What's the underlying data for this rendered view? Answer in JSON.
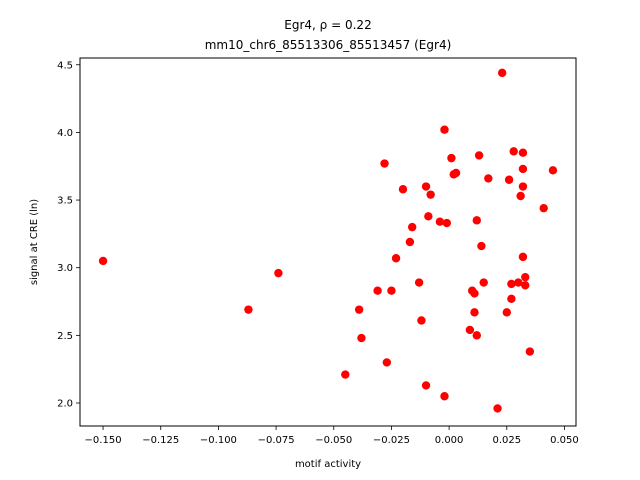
{
  "chart_data": {
    "type": "scatter",
    "title_line1": "Egr4, ρ = 0.22",
    "title_line2": "mm10_chr6_85513306_85513457 (Egr4)",
    "xlabel": "motif activity",
    "ylabel": "signal at CRE (ln)",
    "xlim": [
      -0.16,
      0.055
    ],
    "ylim": [
      1.83,
      4.55
    ],
    "xticks": [
      -0.15,
      -0.125,
      -0.1,
      -0.075,
      -0.05,
      -0.025,
      0.0,
      0.025,
      0.05
    ],
    "xtick_labels": [
      "−0.150",
      "−0.125",
      "−0.100",
      "−0.075",
      "−0.050",
      "−0.025",
      "0.000",
      "0.025",
      "0.050"
    ],
    "yticks": [
      2.0,
      2.5,
      3.0,
      3.5,
      4.0,
      4.5
    ],
    "ytick_labels": [
      "2.0",
      "2.5",
      "3.0",
      "3.5",
      "4.0",
      "4.5"
    ],
    "marker_color": "#ff0000",
    "grid": false,
    "points": [
      {
        "x": -0.15,
        "y": 3.05
      },
      {
        "x": -0.087,
        "y": 2.69
      },
      {
        "x": -0.074,
        "y": 2.96
      },
      {
        "x": -0.045,
        "y": 2.21
      },
      {
        "x": -0.039,
        "y": 2.69
      },
      {
        "x": -0.038,
        "y": 2.48
      },
      {
        "x": -0.031,
        "y": 2.83
      },
      {
        "x": -0.028,
        "y": 3.77
      },
      {
        "x": -0.027,
        "y": 2.3
      },
      {
        "x": -0.025,
        "y": 2.83
      },
      {
        "x": -0.023,
        "y": 3.07
      },
      {
        "x": -0.02,
        "y": 3.58
      },
      {
        "x": -0.017,
        "y": 3.19
      },
      {
        "x": -0.016,
        "y": 3.3
      },
      {
        "x": -0.013,
        "y": 2.89
      },
      {
        "x": -0.012,
        "y": 2.61
      },
      {
        "x": -0.01,
        "y": 3.6
      },
      {
        "x": -0.009,
        "y": 3.38
      },
      {
        "x": -0.01,
        "y": 2.13
      },
      {
        "x": -0.008,
        "y": 3.54
      },
      {
        "x": -0.004,
        "y": 3.34
      },
      {
        "x": -0.002,
        "y": 4.02
      },
      {
        "x": -0.002,
        "y": 2.05
      },
      {
        "x": -0.001,
        "y": 3.33
      },
      {
        "x": 0.001,
        "y": 3.81
      },
      {
        "x": 0.002,
        "y": 3.69
      },
      {
        "x": 0.003,
        "y": 3.7
      },
      {
        "x": 0.009,
        "y": 2.54
      },
      {
        "x": 0.01,
        "y": 2.83
      },
      {
        "x": 0.011,
        "y": 2.81
      },
      {
        "x": 0.011,
        "y": 2.67
      },
      {
        "x": 0.012,
        "y": 3.35
      },
      {
        "x": 0.012,
        "y": 2.5
      },
      {
        "x": 0.013,
        "y": 3.83
      },
      {
        "x": 0.014,
        "y": 3.16
      },
      {
        "x": 0.015,
        "y": 2.89
      },
      {
        "x": 0.017,
        "y": 3.66
      },
      {
        "x": 0.021,
        "y": 1.96
      },
      {
        "x": 0.023,
        "y": 4.44
      },
      {
        "x": 0.025,
        "y": 2.67
      },
      {
        "x": 0.026,
        "y": 3.65
      },
      {
        "x": 0.027,
        "y": 2.77
      },
      {
        "x": 0.027,
        "y": 2.88
      },
      {
        "x": 0.028,
        "y": 3.86
      },
      {
        "x": 0.03,
        "y": 2.89
      },
      {
        "x": 0.031,
        "y": 3.53
      },
      {
        "x": 0.032,
        "y": 3.85
      },
      {
        "x": 0.032,
        "y": 3.6
      },
      {
        "x": 0.032,
        "y": 3.73
      },
      {
        "x": 0.032,
        "y": 3.08
      },
      {
        "x": 0.033,
        "y": 2.93
      },
      {
        "x": 0.033,
        "y": 2.87
      },
      {
        "x": 0.035,
        "y": 2.38
      },
      {
        "x": 0.041,
        "y": 3.44
      },
      {
        "x": 0.045,
        "y": 3.72
      }
    ]
  }
}
